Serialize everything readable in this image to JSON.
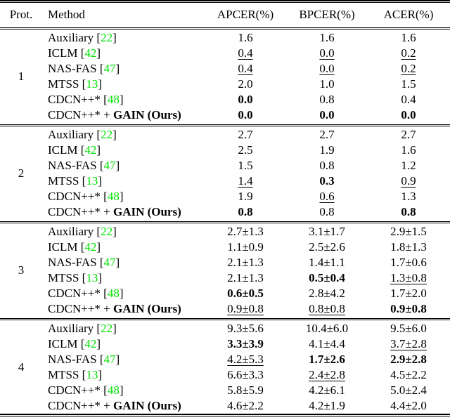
{
  "page": {
    "background": "#ffffff",
    "text_color": "#000000",
    "citation_color": "#00e000"
  },
  "table": {
    "headers": [
      {
        "key": "prot",
        "label": "Prot."
      },
      {
        "key": "method",
        "label": "Method"
      },
      {
        "key": "apcer",
        "label": "APCER(%)"
      },
      {
        "key": "bpcer",
        "label": "BPCER(%)"
      },
      {
        "key": "acer",
        "label": "ACER(%)"
      }
    ],
    "blocks": [
      {
        "protocol": "1",
        "rows": [
          {
            "method": {
              "pre": "Auxiliary ",
              "cite": "22",
              "bold": ""
            },
            "cells": [
              {
                "t": "1.6",
                "s": "plain"
              },
              {
                "t": "1.6",
                "s": "plain"
              },
              {
                "t": "1.6",
                "s": "plain"
              }
            ]
          },
          {
            "method": {
              "pre": "ICLM ",
              "cite": "42",
              "bold": ""
            },
            "cells": [
              {
                "t": "0.4",
                "s": "underline"
              },
              {
                "t": "0.0",
                "s": "underline"
              },
              {
                "t": "0.2",
                "s": "underline"
              }
            ]
          },
          {
            "method": {
              "pre": "NAS-FAS ",
              "cite": "47",
              "bold": ""
            },
            "cells": [
              {
                "t": "0.4",
                "s": "underline"
              },
              {
                "t": "0.0",
                "s": "underline"
              },
              {
                "t": "0.2",
                "s": "underline"
              }
            ]
          },
          {
            "method": {
              "pre": "MTSS ",
              "cite": "13",
              "bold": ""
            },
            "cells": [
              {
                "t": "2.0",
                "s": "plain"
              },
              {
                "t": "1.0",
                "s": "plain"
              },
              {
                "t": "1.5",
                "s": "plain"
              }
            ]
          },
          {
            "method": {
              "pre": "CDCN++* ",
              "cite": "48",
              "bold": ""
            },
            "cells": [
              {
                "t": "0.0",
                "s": "bold"
              },
              {
                "t": "0.8",
                "s": "plain"
              },
              {
                "t": "0.4",
                "s": "plain"
              }
            ]
          },
          {
            "method": {
              "pre": "CDCN++* + ",
              "cite": "",
              "bold": "GAIN (Ours)"
            },
            "cells": [
              {
                "t": "0.0",
                "s": "bold"
              },
              {
                "t": "0.0",
                "s": "bold"
              },
              {
                "t": "0.0",
                "s": "bold"
              }
            ]
          }
        ]
      },
      {
        "protocol": "2",
        "rows": [
          {
            "method": {
              "pre": "Auxiliary ",
              "cite": "22",
              "bold": ""
            },
            "cells": [
              {
                "t": "2.7",
                "s": "plain"
              },
              {
                "t": "2.7",
                "s": "plain"
              },
              {
                "t": "2.7",
                "s": "plain"
              }
            ]
          },
          {
            "method": {
              "pre": "ICLM ",
              "cite": "42",
              "bold": ""
            },
            "cells": [
              {
                "t": "2.5",
                "s": "plain"
              },
              {
                "t": "1.9",
                "s": "plain"
              },
              {
                "t": "1.6",
                "s": "plain"
              }
            ]
          },
          {
            "method": {
              "pre": "NAS-FAS ",
              "cite": "47",
              "bold": ""
            },
            "cells": [
              {
                "t": "1.5",
                "s": "plain"
              },
              {
                "t": "0.8",
                "s": "plain"
              },
              {
                "t": "1.2",
                "s": "plain"
              }
            ]
          },
          {
            "method": {
              "pre": "MTSS ",
              "cite": "13",
              "bold": ""
            },
            "cells": [
              {
                "t": "1.4",
                "s": "underline"
              },
              {
                "t": "0.3",
                "s": "bold"
              },
              {
                "t": "0.9",
                "s": "underline"
              }
            ]
          },
          {
            "method": {
              "pre": "CDCN++* ",
              "cite": "48",
              "bold": ""
            },
            "cells": [
              {
                "t": "1.9",
                "s": "plain"
              },
              {
                "t": "0.6",
                "s": "underline"
              },
              {
                "t": "1.3",
                "s": "plain"
              }
            ]
          },
          {
            "method": {
              "pre": "CDCN++* + ",
              "cite": "",
              "bold": "GAIN (Ours)"
            },
            "cells": [
              {
                "t": "0.8",
                "s": "bold"
              },
              {
                "t": "0.8",
                "s": "plain"
              },
              {
                "t": "0.8",
                "s": "bold"
              }
            ]
          }
        ]
      },
      {
        "protocol": "3",
        "rows": [
          {
            "method": {
              "pre": "Auxiliary ",
              "cite": "22",
              "bold": ""
            },
            "cells": [
              {
                "t": "2.7±1.3",
                "s": "plain"
              },
              {
                "t": "3.1±1.7",
                "s": "plain"
              },
              {
                "t": "2.9±1.5",
                "s": "plain"
              }
            ]
          },
          {
            "method": {
              "pre": "ICLM ",
              "cite": "42",
              "bold": ""
            },
            "cells": [
              {
                "t": "1.1±0.9",
                "s": "plain"
              },
              {
                "t": "2.5±2.6",
                "s": "plain"
              },
              {
                "t": "1.8±1.3",
                "s": "plain"
              }
            ]
          },
          {
            "method": {
              "pre": "NAS-FAS ",
              "cite": "47",
              "bold": ""
            },
            "cells": [
              {
                "t": "2.1±1.3",
                "s": "plain"
              },
              {
                "t": "1.4±1.1",
                "s": "plain"
              },
              {
                "t": "1.7±0.6",
                "s": "plain"
              }
            ]
          },
          {
            "method": {
              "pre": "MTSS ",
              "cite": "13",
              "bold": ""
            },
            "cells": [
              {
                "t": "2.1±1.3",
                "s": "plain"
              },
              {
                "t": "0.5±0.4",
                "s": "bold"
              },
              {
                "t": "1.3±0.8",
                "s": "underline"
              }
            ]
          },
          {
            "method": {
              "pre": "CDCN++* ",
              "cite": "48",
              "bold": ""
            },
            "cells": [
              {
                "t": "0.6±0.5",
                "s": "bold"
              },
              {
                "t": "2.8±4.2",
                "s": "plain"
              },
              {
                "t": "1.7±2.0",
                "s": "plain"
              }
            ]
          },
          {
            "method": {
              "pre": "CDCN++* + ",
              "cite": "",
              "bold": "GAIN (Ours)"
            },
            "cells": [
              {
                "t": "0.9±0.8",
                "s": "underline"
              },
              {
                "t": "0.8±0.8",
                "s": "underline"
              },
              {
                "t": "0.9±0.8",
                "s": "bold"
              }
            ]
          }
        ]
      },
      {
        "protocol": "4",
        "rows": [
          {
            "method": {
              "pre": "Auxiliary ",
              "cite": "22",
              "bold": ""
            },
            "cells": [
              {
                "t": "9.3±5.6",
                "s": "plain"
              },
              {
                "t": "10.4±6.0",
                "s": "plain"
              },
              {
                "t": "9.5±6.0",
                "s": "plain"
              }
            ]
          },
          {
            "method": {
              "pre": "ICLM ",
              "cite": "42",
              "bold": ""
            },
            "cells": [
              {
                "t": "3.3±3.9",
                "s": "bold"
              },
              {
                "t": "4.1±4.4",
                "s": "plain"
              },
              {
                "t": "3.7±2.8",
                "s": "underline"
              }
            ]
          },
          {
            "method": {
              "pre": "NAS-FAS ",
              "cite": "47",
              "bold": ""
            },
            "cells": [
              {
                "t": "4.2±5.3",
                "s": "underline"
              },
              {
                "t": "1.7±2.6",
                "s": "bold"
              },
              {
                "t": "2.9±2.8",
                "s": "bold"
              }
            ]
          },
          {
            "method": {
              "pre": "MTSS ",
              "cite": "13",
              "bold": ""
            },
            "cells": [
              {
                "t": "6.6±3.3",
                "s": "plain"
              },
              {
                "t": "2.4±2.8",
                "s": "underline"
              },
              {
                "t": "4.5±2.2",
                "s": "plain"
              }
            ]
          },
          {
            "method": {
              "pre": "CDCN++* ",
              "cite": "48",
              "bold": ""
            },
            "cells": [
              {
                "t": "5.8±5.9",
                "s": "plain"
              },
              {
                "t": "4.2±6.1",
                "s": "plain"
              },
              {
                "t": "5.0±2.4",
                "s": "plain"
              }
            ]
          },
          {
            "method": {
              "pre": "CDCN++* + ",
              "cite": "",
              "bold": "GAIN (Ours)"
            },
            "cells": [
              {
                "t": "4.6±2.2",
                "s": "plain"
              },
              {
                "t": "4.2±1.9",
                "s": "plain"
              },
              {
                "t": "4.4±2.0",
                "s": "plain"
              }
            ]
          }
        ]
      }
    ]
  }
}
